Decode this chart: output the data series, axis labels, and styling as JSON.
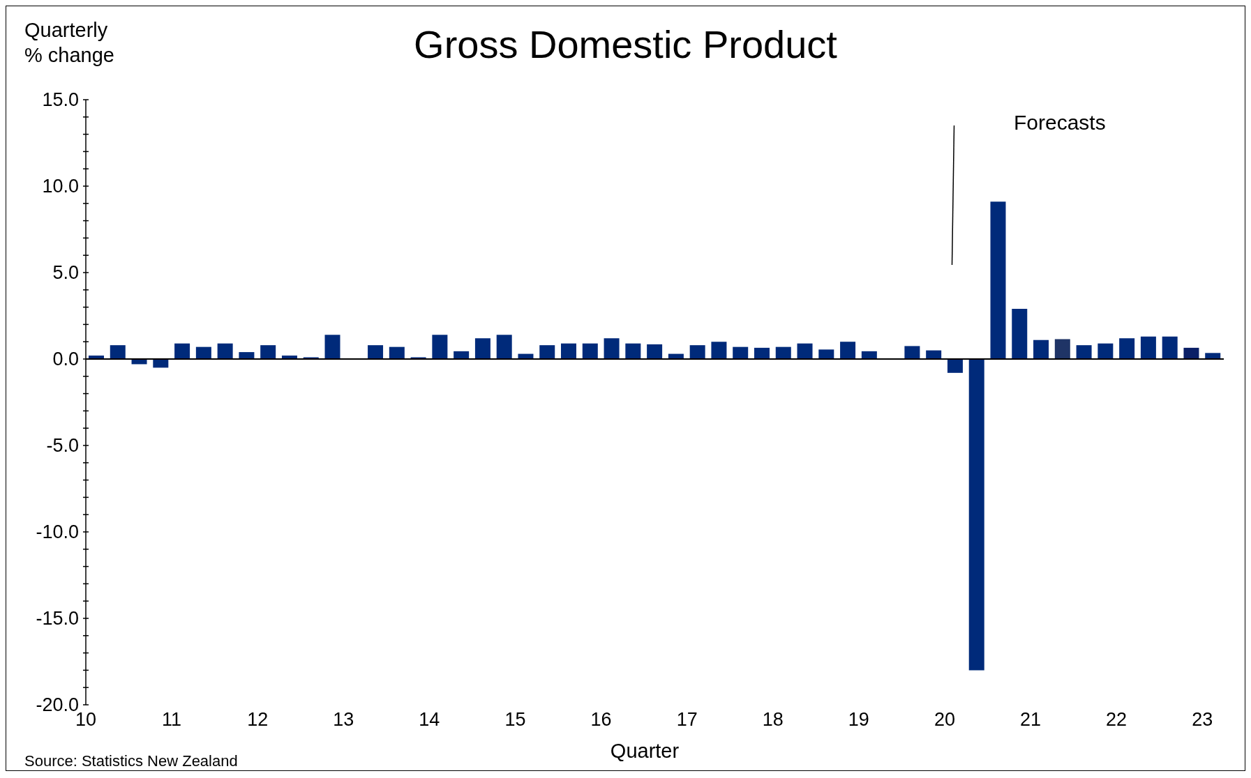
{
  "chart_data": {
    "type": "bar",
    "title": "Gross Domestic Product",
    "ylabel": "Quarterly\n% change",
    "xlabel": "Quarter",
    "categories": [
      "10",
      null,
      null,
      null,
      "11",
      null,
      null,
      null,
      "12",
      null,
      null,
      null,
      "13",
      null,
      null,
      null,
      "14",
      null,
      null,
      null,
      "15",
      null,
      null,
      null,
      "16",
      null,
      null,
      null,
      "17",
      null,
      null,
      null,
      "18",
      null,
      null,
      null,
      "19",
      null,
      null,
      null,
      "20",
      null,
      null,
      null,
      "21",
      null,
      null,
      null,
      "22",
      null,
      null,
      null,
      "23"
    ],
    "values": [
      0.2,
      0.8,
      -0.3,
      -0.5,
      0.9,
      0.7,
      0.9,
      0.4,
      0.8,
      0.2,
      0.1,
      1.4,
      0.0,
      0.8,
      0.7,
      0.1,
      1.4,
      0.45,
      1.2,
      1.4,
      0.3,
      0.8,
      0.9,
      0.9,
      1.2,
      0.9,
      0.85,
      0.3,
      0.8,
      1.0,
      0.7,
      0.65,
      0.7,
      0.9,
      0.55,
      1.0,
      0.45,
      0.0,
      0.75,
      0.5,
      -0.8,
      -18.0,
      9.1,
      2.9,
      1.1,
      1.15,
      0.8,
      0.9,
      1.2,
      1.3,
      1.3,
      0.65,
      0.35
    ],
    "colors": [
      "#002a7a",
      "#002a7a",
      "#002a7a",
      "#002a7a",
      "#002a7a",
      "#002a7a",
      "#002a7a",
      "#002a7a",
      "#002a7a",
      "#002a7a",
      "#002a7a",
      "#002a7a",
      "#002a7a",
      "#002a7a",
      "#002a7a",
      "#002a7a",
      "#002a7a",
      "#002a7a",
      "#002a7a",
      "#002a7a",
      "#002a7a",
      "#002a7a",
      "#002a7a",
      "#002a7a",
      "#002a7a",
      "#002a7a",
      "#002a7a",
      "#002a7a",
      "#002a7a",
      "#002a7a",
      "#002a7a",
      "#002a7a",
      "#002a7a",
      "#002a7a",
      "#002a7a",
      "#002a7a",
      "#002a7a",
      "#002a7a",
      "#002a7a",
      "#002a7a",
      "#002a7a",
      "#002a7a",
      "#002a7a",
      "#002a7a",
      "#002a7a",
      "#1f3466",
      "#002a7a",
      "#002a7a",
      "#002a7a",
      "#002a7a",
      "#002a7a",
      "#0a1f66",
      "#002a7a"
    ],
    "ylim": [
      -20,
      15
    ],
    "yticks": [
      {
        "value": -20,
        "label": "-20.0"
      },
      {
        "value": -19,
        "label": null
      },
      {
        "value": -18,
        "label": null
      },
      {
        "value": -17,
        "label": null
      },
      {
        "value": -16,
        "label": null
      },
      {
        "value": -15,
        "label": "-15.0"
      },
      {
        "value": -14,
        "label": null
      },
      {
        "value": -13,
        "label": null
      },
      {
        "value": -12,
        "label": null
      },
      {
        "value": -11,
        "label": null
      },
      {
        "value": -10,
        "label": "-10.0"
      },
      {
        "value": -9,
        "label": null
      },
      {
        "value": -8,
        "label": null
      },
      {
        "value": -7,
        "label": null
      },
      {
        "value": -6,
        "label": null
      },
      {
        "value": -5,
        "label": "-5.0"
      },
      {
        "value": -4,
        "label": null
      },
      {
        "value": -3,
        "label": null
      },
      {
        "value": -2,
        "label": null
      },
      {
        "value": -1,
        "label": null
      },
      {
        "value": 0,
        "label": "0.0"
      },
      {
        "value": 1,
        "label": null
      },
      {
        "value": 2,
        "label": null
      },
      {
        "value": 3,
        "label": null
      },
      {
        "value": 4,
        "label": null
      },
      {
        "value": 5,
        "label": "5.0"
      },
      {
        "value": 6,
        "label": null
      },
      {
        "value": 7,
        "label": null
      },
      {
        "value": 8,
        "label": null
      },
      {
        "value": 9,
        "label": null
      },
      {
        "value": 10,
        "label": "10.0"
      },
      {
        "value": 11,
        "label": null
      },
      {
        "value": 12,
        "label": null
      },
      {
        "value": 13,
        "label": null
      },
      {
        "value": 14,
        "label": null
      },
      {
        "value": 15,
        "label": "15.0"
      }
    ],
    "ref_lines": [
      {
        "axis": "y",
        "value": 0,
        "color": "#000000"
      }
    ],
    "annotations": [
      "Forecasts",
      "Source: Statistics New Zealand"
    ]
  }
}
